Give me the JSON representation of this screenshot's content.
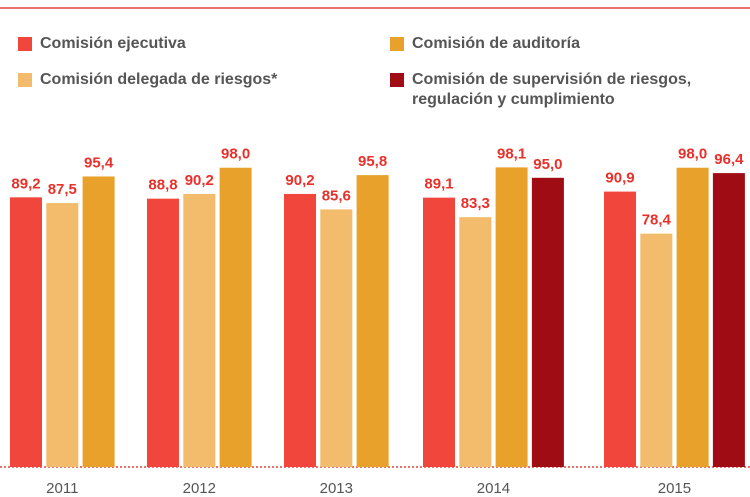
{
  "chart_data": {
    "type": "bar",
    "categories": [
      "2011",
      "2012",
      "2013",
      "2014",
      "2015"
    ],
    "series": [
      {
        "name": "Comisión ejecutiva",
        "color": "#f0463c",
        "values": [
          89.2,
          88.8,
          90.2,
          89.1,
          90.9
        ],
        "value_labels": [
          "89,2",
          "88,8",
          "90,2",
          "89,1",
          "90,9"
        ]
      },
      {
        "name": "Comisión delegada de riesgos*",
        "color": "#f2bc6c",
        "values": [
          87.5,
          90.2,
          85.6,
          83.3,
          78.4
        ],
        "value_labels": [
          "87,5",
          "90,2",
          "85,6",
          "83,3",
          "78,4"
        ]
      },
      {
        "name": "Comisión de auditoría",
        "color": "#e8a12a",
        "values": [
          95.4,
          98.0,
          95.8,
          98.1,
          98.0
        ],
        "value_labels": [
          "95,4",
          "98,0",
          "95,8",
          "98,1",
          "98,0"
        ]
      },
      {
        "name": "Comisión de supervisión de riesgos, regulación y cumplimiento",
        "color": "#a00c14",
        "values": [
          null,
          null,
          null,
          95.0,
          96.4
        ],
        "value_labels": [
          null,
          null,
          null,
          "95,0",
          "96,4"
        ]
      }
    ],
    "ylim": [
      9,
      100
    ]
  }
}
